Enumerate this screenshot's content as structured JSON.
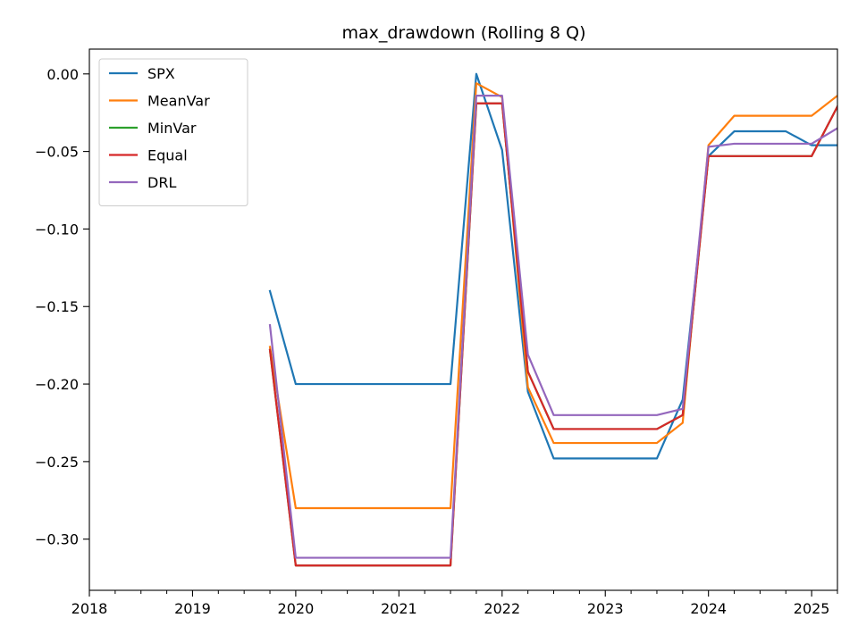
{
  "chart_data": {
    "type": "line",
    "title": "max_drawdown (Rolling 8 Q)",
    "xlabel": "",
    "ylabel": "",
    "x_axis": {
      "type": "date",
      "range": [
        "2018-01-01",
        "2025-04-01"
      ],
      "major_ticks": [
        "2018-01-01",
        "2019-01-01",
        "2020-01-01",
        "2021-01-01",
        "2022-01-01",
        "2023-01-01",
        "2024-01-01",
        "2025-01-01"
      ],
      "major_tick_labels": [
        "2018",
        "2019",
        "2020",
        "2021",
        "2022",
        "2023",
        "2024",
        "2025"
      ],
      "minor_ticks": "quarterly"
    },
    "y_axis": {
      "range": [
        -0.333,
        0.016
      ],
      "ticks": [
        0.0,
        -0.05,
        -0.1,
        -0.15,
        -0.2,
        -0.25,
        -0.3
      ],
      "tick_labels": [
        "0.00",
        "−0.05",
        "−0.10",
        "−0.15",
        "−0.20",
        "−0.25",
        "−0.30"
      ]
    },
    "grid": false,
    "legend_position": "top-left",
    "x": [
      "2019-10-01",
      "2020-01-01",
      "2020-04-01",
      "2020-07-01",
      "2020-10-01",
      "2021-01-01",
      "2021-04-01",
      "2021-07-01",
      "2021-10-01",
      "2022-01-01",
      "2022-04-01",
      "2022-07-01",
      "2022-10-01",
      "2023-01-01",
      "2023-04-01",
      "2023-07-01",
      "2023-10-01",
      "2024-01-01",
      "2024-04-01",
      "2024-07-01",
      "2024-10-01",
      "2025-01-01",
      "2025-04-01"
    ],
    "series": [
      {
        "name": "SPX",
        "color": "#1f77b4",
        "values": [
          -0.14,
          -0.2,
          -0.2,
          -0.2,
          -0.2,
          -0.2,
          -0.2,
          -0.2,
          0.0,
          -0.049,
          -0.205,
          -0.248,
          -0.248,
          -0.248,
          -0.248,
          -0.248,
          -0.21,
          -0.053,
          -0.037,
          -0.037,
          -0.037,
          -0.046,
          -0.046
        ]
      },
      {
        "name": "MeanVar",
        "color": "#ff7f0e",
        "values": [
          -0.176,
          -0.28,
          -0.28,
          -0.28,
          -0.28,
          -0.28,
          -0.28,
          -0.28,
          -0.006,
          -0.015,
          -0.202,
          -0.238,
          -0.238,
          -0.238,
          -0.238,
          -0.238,
          -0.225,
          -0.046,
          -0.027,
          -0.027,
          -0.027,
          -0.027,
          -0.014
        ]
      },
      {
        "name": "MinVar",
        "color": "#2ca02c",
        "values": [
          -0.178,
          -0.317,
          -0.317,
          -0.317,
          -0.317,
          -0.317,
          -0.317,
          -0.317,
          -0.019,
          -0.019,
          -0.192,
          -0.229,
          -0.229,
          -0.229,
          -0.229,
          -0.229,
          -0.22,
          -0.053,
          -0.053,
          -0.053,
          -0.053,
          -0.053,
          -0.021
        ]
      },
      {
        "name": "Equal",
        "color": "#d62728",
        "values": [
          -0.178,
          -0.317,
          -0.317,
          -0.317,
          -0.317,
          -0.317,
          -0.317,
          -0.317,
          -0.019,
          -0.019,
          -0.192,
          -0.229,
          -0.229,
          -0.229,
          -0.229,
          -0.229,
          -0.22,
          -0.053,
          -0.053,
          -0.053,
          -0.053,
          -0.053,
          -0.021
        ]
      },
      {
        "name": "DRL",
        "color": "#9467bd",
        "values": [
          -0.162,
          -0.312,
          -0.312,
          -0.312,
          -0.312,
          -0.312,
          -0.312,
          -0.312,
          -0.014,
          -0.014,
          -0.181,
          -0.22,
          -0.22,
          -0.22,
          -0.22,
          -0.22,
          -0.216,
          -0.047,
          -0.045,
          -0.045,
          -0.045,
          -0.045,
          -0.035
        ]
      }
    ]
  }
}
